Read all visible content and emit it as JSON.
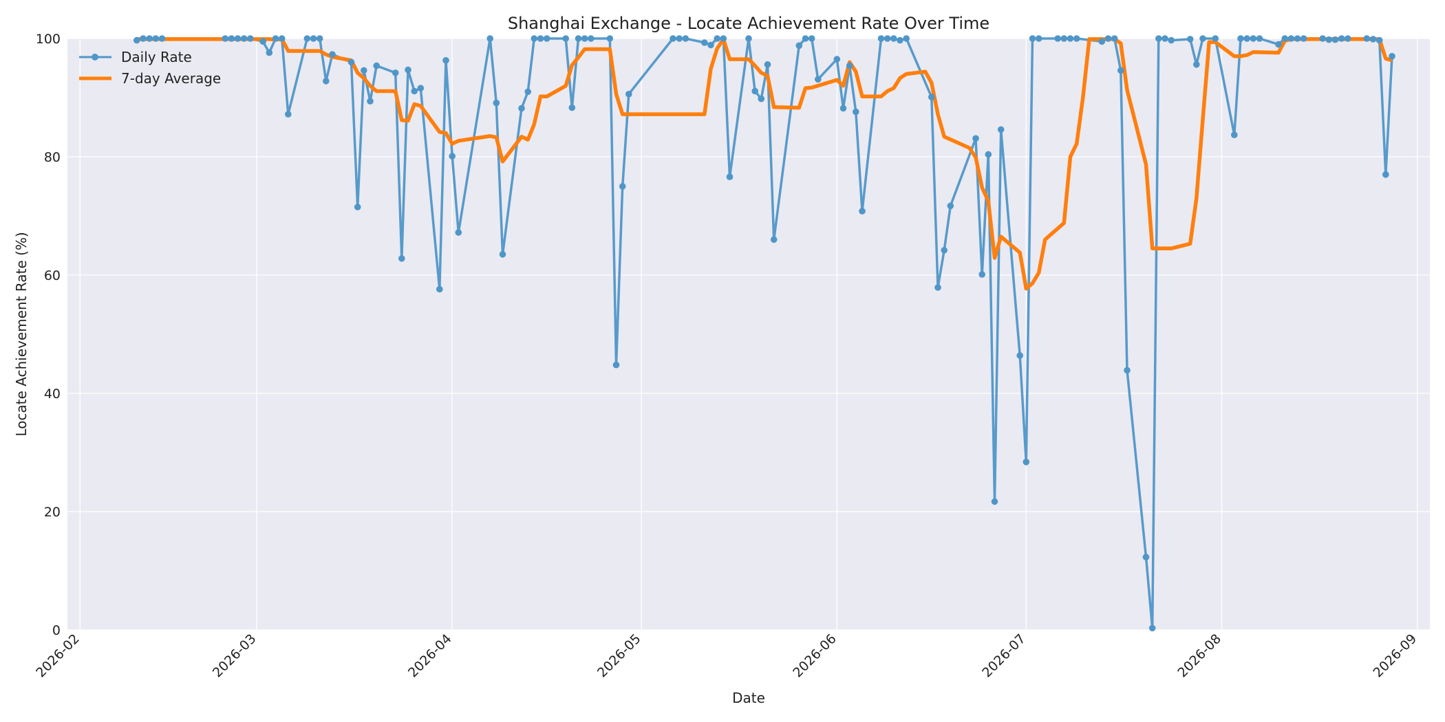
{
  "chart_data": {
    "type": "line",
    "title": "Shanghai Exchange - Locate Achievement Rate Over Time",
    "xlabel": "Date",
    "ylabel": "Locate Achievement Rate (%)",
    "xlim": [
      "2026-01-30",
      "2026-09-03"
    ],
    "ylim": [
      0,
      100
    ],
    "yticks": [
      0,
      20,
      40,
      60,
      80,
      100
    ],
    "xticks": [
      "2026-02",
      "2026-03",
      "2026-04",
      "2026-05",
      "2026-06",
      "2026-07",
      "2026-08",
      "2026-09"
    ],
    "grid": true,
    "legend_position": "top-left",
    "colors": {
      "plot_bg": "#eaeaf2",
      "grid": "#ffffff",
      "daily": "#4f96c8",
      "avg": "#ff7f0e"
    },
    "series": [
      {
        "name": "Daily Rate",
        "marker": "circle",
        "points": [
          [
            "2026-02-10",
            99.7
          ],
          [
            "2026-02-11",
            100
          ],
          [
            "2026-02-12",
            100
          ],
          [
            "2026-02-13",
            100
          ],
          [
            "2026-02-14",
            100
          ],
          [
            "2026-02-24",
            100
          ],
          [
            "2026-02-25",
            100
          ],
          [
            "2026-02-26",
            100
          ],
          [
            "2026-02-27",
            100
          ],
          [
            "2026-02-28",
            100
          ],
          [
            "2026-03-02",
            99.5
          ],
          [
            "2026-03-03",
            97.6
          ],
          [
            "2026-03-04",
            100
          ],
          [
            "2026-03-05",
            100
          ],
          [
            "2026-03-06",
            87.2
          ],
          [
            "2026-03-09",
            100
          ],
          [
            "2026-03-10",
            100
          ],
          [
            "2026-03-11",
            100
          ],
          [
            "2026-03-12",
            92.8
          ],
          [
            "2026-03-13",
            97.3
          ],
          [
            "2026-03-16",
            96.0
          ],
          [
            "2026-03-17",
            71.5
          ],
          [
            "2026-03-18",
            94.6
          ],
          [
            "2026-03-19",
            89.4
          ],
          [
            "2026-03-20",
            95.4
          ],
          [
            "2026-03-23",
            94.2
          ],
          [
            "2026-03-24",
            62.8
          ],
          [
            "2026-03-25",
            94.7
          ],
          [
            "2026-03-26",
            91.1
          ],
          [
            "2026-03-27",
            91.6
          ],
          [
            "2026-03-30",
            57.6
          ],
          [
            "2026-03-31",
            96.3
          ],
          [
            "2026-04-01",
            80.1
          ],
          [
            "2026-04-02",
            67.2
          ],
          [
            "2026-04-07",
            100
          ],
          [
            "2026-04-08",
            89.1
          ],
          [
            "2026-04-09",
            63.5
          ],
          [
            "2026-04-12",
            88.2
          ],
          [
            "2026-04-13",
            91.0
          ],
          [
            "2026-04-14",
            100
          ],
          [
            "2026-04-15",
            100
          ],
          [
            "2026-04-16",
            100
          ],
          [
            "2026-04-19",
            100
          ],
          [
            "2026-04-20",
            88.3
          ],
          [
            "2026-04-21",
            100
          ],
          [
            "2026-04-22",
            100
          ],
          [
            "2026-04-23",
            100
          ],
          [
            "2026-04-26",
            100
          ],
          [
            "2026-04-27",
            44.8
          ],
          [
            "2026-04-28",
            75.0
          ],
          [
            "2026-04-29",
            90.6
          ],
          [
            "2026-05-06",
            100
          ],
          [
            "2026-05-07",
            100
          ],
          [
            "2026-05-08",
            100
          ],
          [
            "2026-05-11",
            99.3
          ],
          [
            "2026-05-12",
            98.9
          ],
          [
            "2026-05-13",
            100
          ],
          [
            "2026-05-14",
            100
          ],
          [
            "2026-05-15",
            76.6
          ],
          [
            "2026-05-18",
            100
          ],
          [
            "2026-05-19",
            91.1
          ],
          [
            "2026-05-20",
            89.8
          ],
          [
            "2026-05-21",
            95.6
          ],
          [
            "2026-05-22",
            66.0
          ],
          [
            "2026-05-26",
            98.8
          ],
          [
            "2026-05-27",
            100
          ],
          [
            "2026-05-28",
            100
          ],
          [
            "2026-05-29",
            93.1
          ],
          [
            "2026-06-01",
            96.5
          ],
          [
            "2026-06-02",
            88.2
          ],
          [
            "2026-06-03",
            95.4
          ],
          [
            "2026-06-04",
            87.6
          ],
          [
            "2026-06-05",
            70.8
          ],
          [
            "2026-06-08",
            100
          ],
          [
            "2026-06-09",
            100
          ],
          [
            "2026-06-10",
            100
          ],
          [
            "2026-06-11",
            99.7
          ],
          [
            "2026-06-12",
            100
          ],
          [
            "2026-06-16",
            90.1
          ],
          [
            "2026-06-17",
            57.9
          ],
          [
            "2026-06-18",
            64.2
          ],
          [
            "2026-06-19",
            71.7
          ],
          [
            "2026-06-23",
            83.1
          ],
          [
            "2026-06-24",
            60.1
          ],
          [
            "2026-06-25",
            80.4
          ],
          [
            "2026-06-26",
            21.7
          ],
          [
            "2026-06-27",
            84.6
          ],
          [
            "2026-06-30",
            46.4
          ],
          [
            "2026-07-01",
            28.4
          ],
          [
            "2026-07-02",
            100
          ],
          [
            "2026-07-03",
            100
          ],
          [
            "2026-07-06",
            100
          ],
          [
            "2026-07-07",
            100
          ],
          [
            "2026-07-08",
            100
          ],
          [
            "2026-07-09",
            100
          ],
          [
            "2026-07-13",
            99.5
          ],
          [
            "2026-07-14",
            100
          ],
          [
            "2026-07-15",
            100
          ],
          [
            "2026-07-16",
            94.6
          ],
          [
            "2026-07-17",
            43.9
          ],
          [
            "2026-07-20",
            12.3
          ],
          [
            "2026-07-21",
            0.3
          ],
          [
            "2026-07-22",
            100
          ],
          [
            "2026-07-23",
            100
          ],
          [
            "2026-07-24",
            99.7
          ],
          [
            "2026-07-27",
            99.9
          ],
          [
            "2026-07-28",
            95.6
          ],
          [
            "2026-07-29",
            100
          ],
          [
            "2026-07-31",
            100
          ],
          [
            "2026-08-03",
            83.7
          ],
          [
            "2026-08-04",
            100
          ],
          [
            "2026-08-05",
            100
          ],
          [
            "2026-08-06",
            100
          ],
          [
            "2026-08-07",
            100
          ],
          [
            "2026-08-10",
            99.0
          ],
          [
            "2026-08-11",
            100
          ],
          [
            "2026-08-12",
            100
          ],
          [
            "2026-08-13",
            100
          ],
          [
            "2026-08-14",
            100
          ],
          [
            "2026-08-17",
            100
          ],
          [
            "2026-08-18",
            99.8
          ],
          [
            "2026-08-19",
            99.8
          ],
          [
            "2026-08-20",
            100
          ],
          [
            "2026-08-21",
            100
          ],
          [
            "2026-08-24",
            100
          ],
          [
            "2026-08-25",
            99.9
          ],
          [
            "2026-08-26",
            99.7
          ],
          [
            "2026-08-27",
            77.0
          ],
          [
            "2026-08-28",
            97.0
          ]
        ]
      },
      {
        "name": "7-day Average",
        "marker": "none",
        "points": [
          [
            "2026-02-10",
            99.9
          ],
          [
            "2026-02-20",
            99.9
          ],
          [
            "2026-03-02",
            99.9
          ],
          [
            "2026-03-03",
            99.9
          ],
          [
            "2026-03-04",
            99.8
          ],
          [
            "2026-03-05",
            99.9
          ],
          [
            "2026-03-06",
            97.9
          ],
          [
            "2026-03-11",
            97.9
          ],
          [
            "2026-03-12",
            97.3
          ],
          [
            "2026-03-13",
            96.9
          ],
          [
            "2026-03-16",
            96.3
          ],
          [
            "2026-03-17",
            94.2
          ],
          [
            "2026-03-18",
            93.3
          ],
          [
            "2026-03-19",
            92.0
          ],
          [
            "2026-03-20",
            91.1
          ],
          [
            "2026-03-23",
            91.1
          ],
          [
            "2026-03-24",
            86.2
          ],
          [
            "2026-03-25",
            86.1
          ],
          [
            "2026-03-26",
            88.9
          ],
          [
            "2026-03-27",
            88.6
          ],
          [
            "2026-03-30",
            84.2
          ],
          [
            "2026-03-31",
            84.0
          ],
          [
            "2026-04-01",
            82.2
          ],
          [
            "2026-04-02",
            82.7
          ],
          [
            "2026-04-07",
            83.5
          ],
          [
            "2026-04-08",
            83.3
          ],
          [
            "2026-04-09",
            79.2
          ],
          [
            "2026-04-12",
            83.4
          ],
          [
            "2026-04-13",
            82.9
          ],
          [
            "2026-04-14",
            85.5
          ],
          [
            "2026-04-15",
            90.2
          ],
          [
            "2026-04-16",
            90.2
          ],
          [
            "2026-04-19",
            92.0
          ],
          [
            "2026-04-20",
            95.5
          ],
          [
            "2026-04-21",
            96.8
          ],
          [
            "2026-04-22",
            98.2
          ],
          [
            "2026-04-26",
            98.2
          ],
          [
            "2026-04-27",
            90.6
          ],
          [
            "2026-04-28",
            87.2
          ],
          [
            "2026-05-11",
            87.2
          ],
          [
            "2026-05-12",
            94.9
          ],
          [
            "2026-05-13",
            98.3
          ],
          [
            "2026-05-14",
            99.9
          ],
          [
            "2026-05-15",
            96.5
          ],
          [
            "2026-05-18",
            96.5
          ],
          [
            "2026-05-19",
            95.4
          ],
          [
            "2026-05-20",
            94.2
          ],
          [
            "2026-05-21",
            93.7
          ],
          [
            "2026-05-22",
            88.4
          ],
          [
            "2026-05-26",
            88.3
          ],
          [
            "2026-05-27",
            91.6
          ],
          [
            "2026-05-28",
            91.7
          ],
          [
            "2026-06-01",
            93.0
          ],
          [
            "2026-06-02",
            92.0
          ],
          [
            "2026-06-03",
            96.0
          ],
          [
            "2026-06-04",
            94.4
          ],
          [
            "2026-06-05",
            90.2
          ],
          [
            "2026-06-08",
            90.2
          ],
          [
            "2026-06-09",
            91.1
          ],
          [
            "2026-06-10",
            91.6
          ],
          [
            "2026-06-11",
            93.3
          ],
          [
            "2026-06-12",
            94.0
          ],
          [
            "2026-06-15",
            94.4
          ],
          [
            "2026-06-16",
            92.5
          ],
          [
            "2026-06-17",
            87.2
          ],
          [
            "2026-06-18",
            83.4
          ],
          [
            "2026-06-22",
            81.5
          ],
          [
            "2026-06-23",
            79.9
          ],
          [
            "2026-06-24",
            74.8
          ],
          [
            "2026-06-25",
            72.5
          ],
          [
            "2026-06-26",
            62.9
          ],
          [
            "2026-06-27",
            66.5
          ],
          [
            "2026-06-30",
            63.8
          ],
          [
            "2026-07-01",
            57.7
          ],
          [
            "2026-07-02",
            58.6
          ],
          [
            "2026-07-03",
            60.4
          ],
          [
            "2026-07-04",
            66.0
          ],
          [
            "2026-07-07",
            68.8
          ],
          [
            "2026-07-08",
            80.0
          ],
          [
            "2026-07-09",
            82.2
          ],
          [
            "2026-07-10",
            90.0
          ],
          [
            "2026-07-11",
            99.9
          ],
          [
            "2026-07-15",
            99.9
          ],
          [
            "2026-07-16",
            99.2
          ],
          [
            "2026-07-17",
            91.3
          ],
          [
            "2026-07-20",
            78.7
          ],
          [
            "2026-07-21",
            64.5
          ],
          [
            "2026-07-24",
            64.5
          ],
          [
            "2026-07-27",
            65.3
          ],
          [
            "2026-07-28",
            73.0
          ],
          [
            "2026-07-29",
            86.3
          ],
          [
            "2026-07-30",
            99.4
          ],
          [
            "2026-07-31",
            99.4
          ],
          [
            "2026-08-03",
            97.0
          ],
          [
            "2026-08-04",
            97.0
          ],
          [
            "2026-08-05",
            97.2
          ],
          [
            "2026-08-06",
            97.7
          ],
          [
            "2026-08-10",
            97.6
          ],
          [
            "2026-08-11",
            99.6
          ],
          [
            "2026-08-12",
            99.9
          ],
          [
            "2026-08-26",
            99.9
          ],
          [
            "2026-08-27",
            96.6
          ],
          [
            "2026-08-28",
            96.3
          ]
        ]
      }
    ]
  }
}
